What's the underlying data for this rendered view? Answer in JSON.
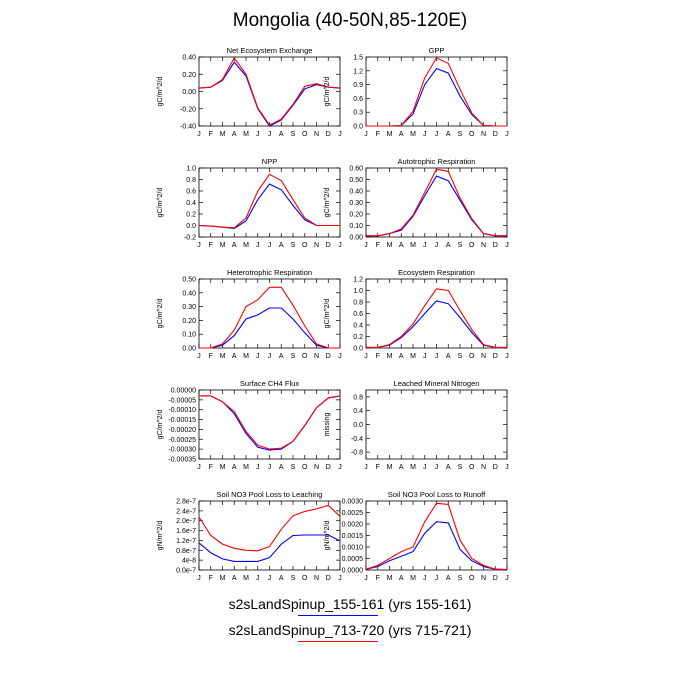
{
  "title": "Mongolia (40-50N,85-120E)",
  "legend": [
    {
      "label": "s2sLandSpinup_155-161 (yrs 155-161)",
      "color": "#0000ff"
    },
    {
      "label": "s2sLandSpinup_713-720 (yrs 715-721)",
      "color": "#ff0000"
    }
  ],
  "chart_data": [
    {
      "type": "line",
      "title": "Net Ecosystem Exchange",
      "ylabel": "gC/m^2/d",
      "x": [
        "J",
        "F",
        "M",
        "A",
        "M",
        "J",
        "J",
        "A",
        "S",
        "O",
        "N",
        "D",
        "J"
      ],
      "ylim": [
        -0.4,
        0.4
      ],
      "yticks": [
        -0.4,
        -0.2,
        0.0,
        0.2,
        0.4
      ],
      "ytick_labels": [
        "-0.40",
        "-0.20",
        "0.00",
        "0.20",
        "0.40"
      ],
      "series": [
        {
          "color": "#0000ff",
          "values": [
            0.04,
            0.05,
            0.13,
            0.34,
            0.18,
            -0.2,
            -0.4,
            -0.33,
            -0.16,
            0.03,
            0.08,
            0.05,
            0.04
          ]
        },
        {
          "color": "#ff0000",
          "values": [
            0.04,
            0.05,
            0.14,
            0.39,
            0.2,
            -0.19,
            -0.39,
            -0.32,
            -0.15,
            0.06,
            0.09,
            0.05,
            0.04
          ]
        }
      ]
    },
    {
      "type": "line",
      "title": "GPP",
      "ylabel": "gC/m^2/d",
      "x": [
        "J",
        "F",
        "M",
        "A",
        "M",
        "J",
        "J",
        "A",
        "S",
        "O",
        "N",
        "D",
        "J"
      ],
      "ylim": [
        0,
        1.5
      ],
      "yticks": [
        0.0,
        0.3,
        0.6,
        0.9,
        1.2,
        1.5
      ],
      "ytick_labels": [
        "0.0",
        "0.3",
        "0.6",
        "0.9",
        "1.2",
        "1.5"
      ],
      "series": [
        {
          "color": "#0000ff",
          "values": [
            0,
            0,
            0,
            0.01,
            0.26,
            0.9,
            1.25,
            1.15,
            0.65,
            0.25,
            0.01,
            0,
            0
          ]
        },
        {
          "color": "#ff0000",
          "values": [
            0,
            0,
            0,
            0.01,
            0.32,
            1.05,
            1.48,
            1.36,
            0.8,
            0.28,
            0.01,
            0,
            0
          ]
        }
      ]
    },
    {
      "type": "line",
      "title": "NPP",
      "ylabel": "gC/m^2/d",
      "x": [
        "J",
        "F",
        "M",
        "A",
        "M",
        "J",
        "J",
        "A",
        "S",
        "O",
        "N",
        "D",
        "J"
      ],
      "ylim": [
        -0.2,
        1.0
      ],
      "yticks": [
        -0.2,
        0.0,
        0.2,
        0.4,
        0.6,
        0.8,
        1.0
      ],
      "ytick_labels": [
        "-0.2",
        "0.0",
        "0.2",
        "0.4",
        "0.6",
        "0.8",
        "1.0"
      ],
      "series": [
        {
          "color": "#0000ff",
          "values": [
            0,
            -0.01,
            -0.03,
            -0.05,
            0.08,
            0.45,
            0.72,
            0.62,
            0.35,
            0.1,
            0,
            0,
            0
          ]
        },
        {
          "color": "#ff0000",
          "values": [
            0,
            -0.01,
            -0.03,
            -0.04,
            0.13,
            0.6,
            0.89,
            0.78,
            0.45,
            0.13,
            0,
            0,
            0
          ]
        }
      ]
    },
    {
      "type": "line",
      "title": "Autotrophic Respiration",
      "ylabel": "gC/m^2/d",
      "x": [
        "J",
        "F",
        "M",
        "A",
        "M",
        "J",
        "J",
        "A",
        "S",
        "O",
        "N",
        "D",
        "J"
      ],
      "ylim": [
        0,
        0.6
      ],
      "yticks": [
        0.0,
        0.1,
        0.2,
        0.3,
        0.4,
        0.5,
        0.6
      ],
      "ytick_labels": [
        "0.00",
        "0.10",
        "0.20",
        "0.30",
        "0.40",
        "0.50",
        "0.60"
      ],
      "series": [
        {
          "color": "#0000ff",
          "values": [
            0.01,
            0.01,
            0.03,
            0.06,
            0.18,
            0.36,
            0.53,
            0.49,
            0.32,
            0.15,
            0.03,
            0.01,
            0.01
          ]
        },
        {
          "color": "#ff0000",
          "values": [
            0.01,
            0.01,
            0.03,
            0.07,
            0.19,
            0.39,
            0.59,
            0.57,
            0.34,
            0.16,
            0.03,
            0.01,
            0.01
          ]
        }
      ]
    },
    {
      "type": "line",
      "title": "Heterotrophic Respiration",
      "ylabel": "gC/m^2/d",
      "x": [
        "J",
        "F",
        "M",
        "A",
        "M",
        "J",
        "J",
        "A",
        "S",
        "O",
        "N",
        "D",
        "J"
      ],
      "ylim": [
        0,
        0.5
      ],
      "yticks": [
        0.0,
        0.1,
        0.2,
        0.3,
        0.4,
        0.5
      ],
      "ytick_labels": [
        "0.00",
        "0.10",
        "0.20",
        "0.30",
        "0.40",
        "0.50"
      ],
      "series": [
        {
          "color": "#0000ff",
          "values": [
            0,
            0,
            0.02,
            0.09,
            0.21,
            0.24,
            0.29,
            0.29,
            0.21,
            0.11,
            0.02,
            0,
            0
          ]
        },
        {
          "color": "#ff0000",
          "values": [
            0,
            0,
            0.03,
            0.13,
            0.3,
            0.35,
            0.44,
            0.44,
            0.31,
            0.16,
            0.03,
            0,
            0
          ]
        }
      ]
    },
    {
      "type": "line",
      "title": "Ecosystem Respiration",
      "ylabel": "gC/m^2/d",
      "x": [
        "J",
        "F",
        "M",
        "A",
        "M",
        "J",
        "J",
        "A",
        "S",
        "O",
        "N",
        "D",
        "J"
      ],
      "ylim": [
        0,
        1.2
      ],
      "yticks": [
        0.0,
        0.2,
        0.4,
        0.6,
        0.8,
        1.0,
        1.2
      ],
      "ytick_labels": [
        "0.0",
        "0.2",
        "0.4",
        "0.6",
        "0.8",
        "1.0",
        "1.2"
      ],
      "series": [
        {
          "color": "#0000ff",
          "values": [
            0.01,
            0.01,
            0.05,
            0.18,
            0.37,
            0.6,
            0.82,
            0.77,
            0.53,
            0.27,
            0.05,
            0.01,
            0.01
          ]
        },
        {
          "color": "#ff0000",
          "values": [
            0.01,
            0.01,
            0.06,
            0.2,
            0.42,
            0.74,
            1.03,
            1.0,
            0.65,
            0.32,
            0.06,
            0.01,
            0.01
          ]
        }
      ]
    },
    {
      "type": "line",
      "title": "Surface CH4 Flux",
      "ylabel": "gC/m^2/d",
      "x": [
        "J",
        "F",
        "M",
        "A",
        "M",
        "J",
        "J",
        "A",
        "S",
        "O",
        "N",
        "D",
        "J"
      ],
      "ylim": [
        -0.00035,
        0
      ],
      "yticks": [
        -0.00035,
        -0.0003,
        -0.00025,
        -0.0002,
        -0.00015,
        -0.0001,
        -5e-05,
        0
      ],
      "ytick_labels": [
        "-0.00035",
        "-0.00030",
        "-0.00025",
        "-0.00020",
        "-0.00015",
        "-0.00010",
        "-0.00005",
        "0.00000"
      ],
      "series": [
        {
          "color": "#0000ff",
          "values": [
            -3e-05,
            -3e-05,
            -6e-05,
            -0.00012,
            -0.00022,
            -0.00029,
            -0.000305,
            -0.0003,
            -0.00026,
            -0.00018,
            -9e-05,
            -4e-05,
            -3e-05
          ]
        },
        {
          "color": "#ff0000",
          "values": [
            -3e-05,
            -3e-05,
            -6e-05,
            -0.00011,
            -0.00021,
            -0.00028,
            -0.0003,
            -0.000295,
            -0.00026,
            -0.00018,
            -9e-05,
            -4e-05,
            -3e-05
          ]
        }
      ]
    },
    {
      "type": "line",
      "title": "Leached Mineral Nitrogen",
      "ylabel": "missing",
      "x": [
        "J",
        "F",
        "M",
        "A",
        "M",
        "J",
        "J",
        "A",
        "S",
        "O",
        "N",
        "D",
        "J"
      ],
      "ylim": [
        -1,
        1
      ],
      "yticks": [
        -0.8,
        -0.4,
        0.0,
        0.4,
        0.8
      ],
      "ytick_labels": [
        "-0.8",
        "-0.4",
        "0.0",
        "0.4",
        "0.8"
      ],
      "series": []
    },
    {
      "type": "line",
      "title": "Soil NO3 Pool Loss to Leaching",
      "ylabel": "gN/m^2/d",
      "x": [
        "J",
        "F",
        "M",
        "A",
        "M",
        "J",
        "J",
        "A",
        "S",
        "O",
        "N",
        "D",
        "J"
      ],
      "ylim": [
        0,
        2.8e-07
      ],
      "yticks": [
        0,
        4e-08,
        8e-08,
        1.2e-07,
        1.6e-07,
        2e-07,
        2.4e-07,
        2.8e-07
      ],
      "ytick_labels": [
        "0.0e-7",
        "4e-8",
        "0.8e-7",
        "1.2e-7",
        "1.6e-7",
        "2.0e-7",
        "2.4e-7",
        "2.8e-7"
      ],
      "series": [
        {
          "color": "#0000ff",
          "values": [
            1.1e-07,
            7e-08,
            4.5e-08,
            3.5e-08,
            3.5e-08,
            3.5e-08,
            5e-08,
            1.05e-07,
            1.4e-07,
            1.42e-07,
            1.42e-07,
            1.42e-07,
            1.18e-07
          ]
        },
        {
          "color": "#ff0000",
          "values": [
            2.15e-07,
            1.4e-07,
            1.05e-07,
            8.8e-08,
            8e-08,
            7.8e-08,
            9.5e-08,
            1.65e-07,
            2.2e-07,
            2.38e-07,
            2.48e-07,
            2.62e-07,
            2.18e-07
          ]
        }
      ]
    },
    {
      "type": "line",
      "title": "Soil NO3 Pool Loss to Runoff",
      "ylabel": "gN/m^2/d",
      "x": [
        "J",
        "F",
        "M",
        "A",
        "M",
        "J",
        "J",
        "A",
        "S",
        "O",
        "N",
        "D",
        "J"
      ],
      "ylim": [
        0,
        0.003
      ],
      "yticks": [
        0,
        0.0005,
        0.001,
        0.0015,
        0.002,
        0.0025,
        0.003
      ],
      "ytick_labels": [
        "0.0000",
        "0.0005",
        "0.0010",
        "0.0015",
        "0.0020",
        "0.0025",
        "0.0030"
      ],
      "series": [
        {
          "color": "#0000ff",
          "values": [
            3e-05,
            0.00015,
            0.0004,
            0.0006,
            0.0008,
            0.0016,
            0.0021,
            0.00205,
            0.0009,
            0.0004,
            0.00015,
            3e-05,
            2e-05
          ]
        },
        {
          "color": "#ff0000",
          "values": [
            3e-05,
            0.0002,
            0.0005,
            0.0008,
            0.001,
            0.0021,
            0.0029,
            0.00285,
            0.0013,
            0.0005,
            0.0002,
            4e-05,
            2e-05
          ]
        }
      ]
    }
  ]
}
